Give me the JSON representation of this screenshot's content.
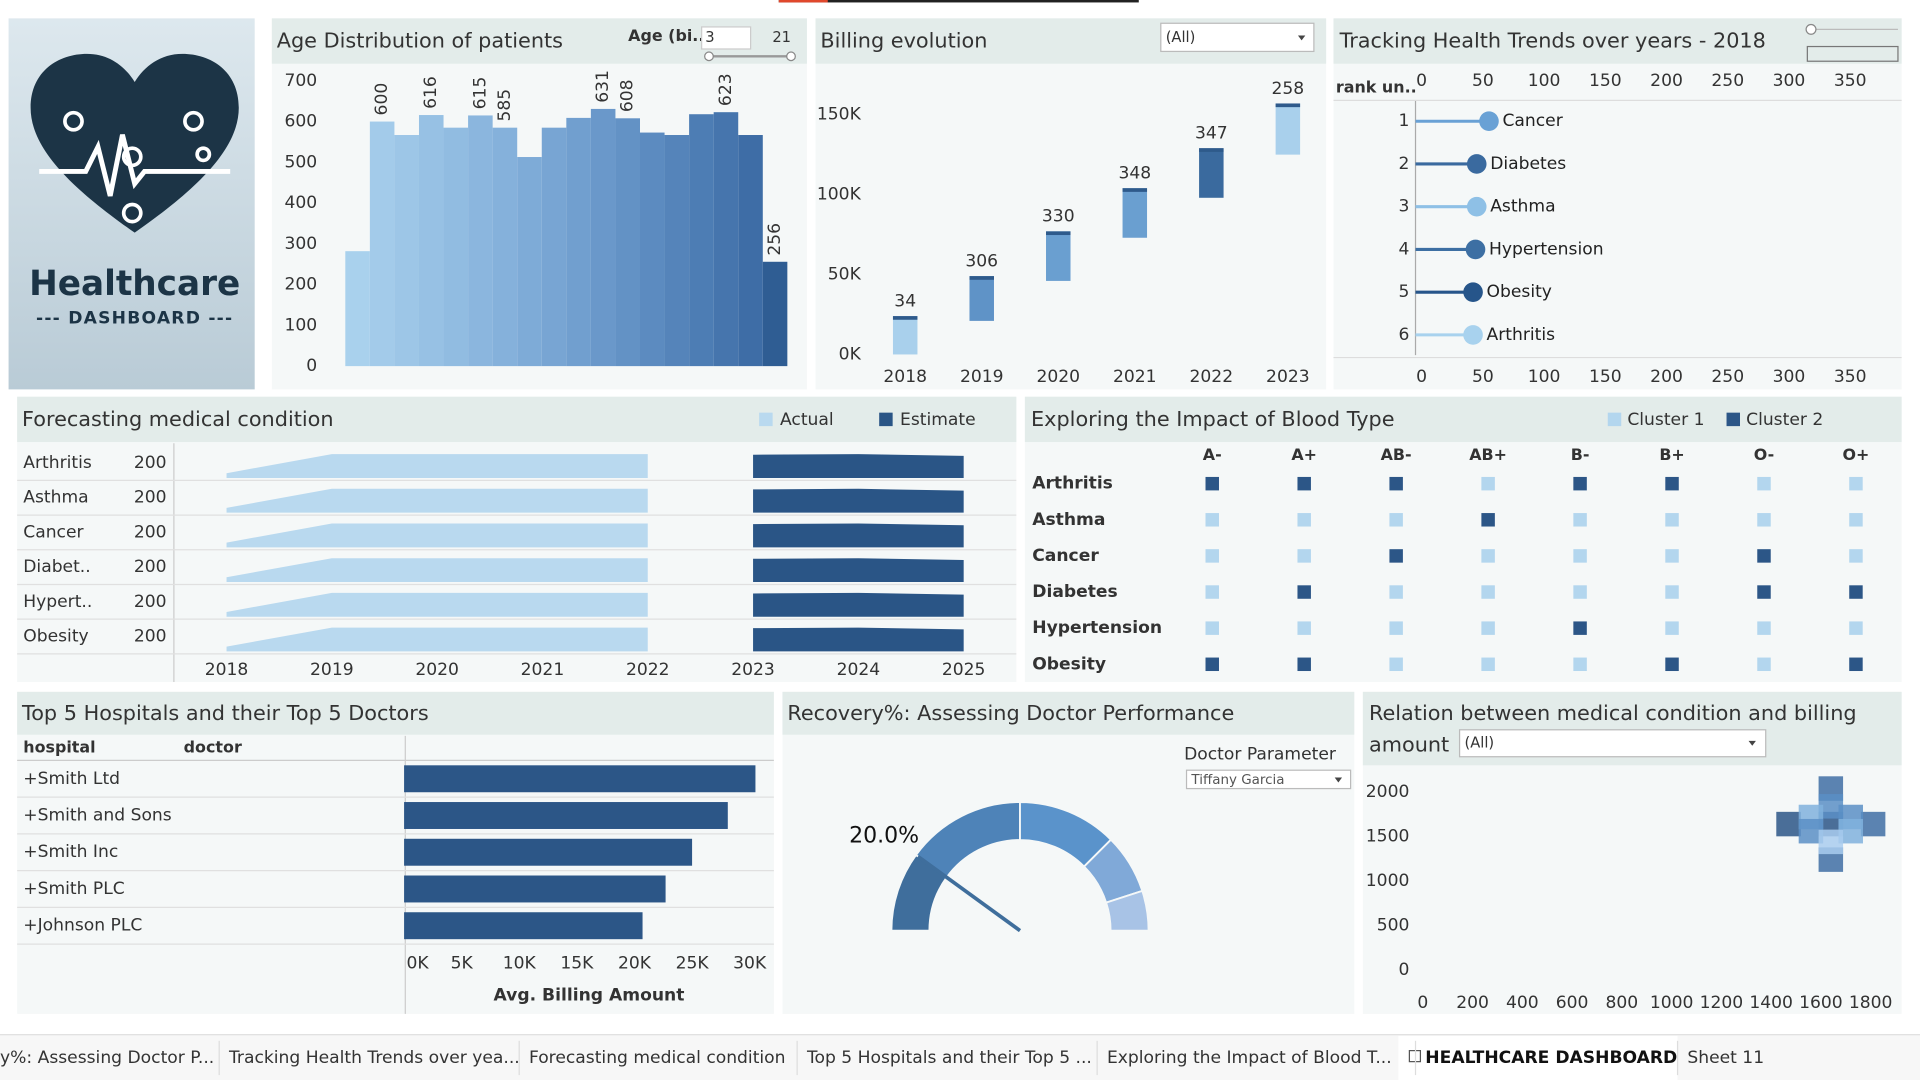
{
  "logo": {
    "title": "Healthcare",
    "subtitle": "--- DASHBOARD ---"
  },
  "chart_data": [
    {
      "type": "bar",
      "title": "Age Distribution of patients",
      "filter": {
        "label": "Age (bi..",
        "min": 3,
        "max": 21
      },
      "values": [
        282,
        600,
        567,
        616,
        585,
        615,
        585,
        513,
        585,
        609,
        631,
        608,
        573,
        567,
        618,
        623,
        567,
        256
      ],
      "show_labels": [
        false,
        true,
        false,
        true,
        false,
        true,
        true,
        false,
        false,
        false,
        true,
        true,
        false,
        false,
        false,
        true,
        false,
        true
      ],
      "colors": [
        "#a9d1ed",
        "#a3cbea",
        "#9dc6e7",
        "#97c1e4",
        "#91bce1",
        "#8bb6de",
        "#85b1db",
        "#7eabd7",
        "#78a5d3",
        "#719fcf",
        "#6a98ca",
        "#6392c5",
        "#5c8bc0",
        "#5584ba",
        "#4d7db4",
        "#4675ad",
        "#3e6da6",
        "#2f5d93"
      ],
      "ylim": [
        0,
        730
      ],
      "yticks": [
        0,
        100,
        200,
        300,
        400,
        500,
        600,
        700
      ]
    },
    {
      "type": "floating-bar",
      "title": "Billing evolution",
      "dropdown": "(All)",
      "categories": [
        "2018",
        "2019",
        "2020",
        "2021",
        "2022",
        "2023"
      ],
      "low": [
        0,
        21000,
        46000,
        73000,
        98000,
        125000
      ],
      "high": [
        24000,
        49000,
        77000,
        104000,
        129000,
        157000
      ],
      "counts": [
        34,
        306,
        330,
        348,
        347,
        258
      ],
      "colors": [
        "#a9d0ec",
        "#5f93c7",
        "#6a9fd0",
        "#6a9fd0",
        "#3a6a9e",
        "#a9d0ec"
      ],
      "cap_color": "#2e5a8b",
      "ylim": [
        -5000,
        175000
      ],
      "yticks": [
        {
          "value": 0,
          "label": "0K"
        },
        {
          "value": 50000,
          "label": "50K"
        },
        {
          "value": 100000,
          "label": "100K"
        },
        {
          "value": 150000,
          "label": "150K"
        }
      ]
    },
    {
      "type": "lollipop",
      "title": "Tracking Health Trends over years - 2018",
      "y_label": "rank un..",
      "ranks": [
        1,
        2,
        3,
        4,
        5,
        6
      ],
      "categories": [
        "Cancer",
        "Diabetes",
        "Asthma",
        "Hypertension",
        "Obesity",
        "Arthritis"
      ],
      "values": [
        55,
        45,
        45,
        44,
        42,
        42
      ],
      "colors": [
        "#69a1d5",
        "#3a6a9f",
        "#8ec0e6",
        "#3d6fa3",
        "#26558a",
        "#a8d2ee"
      ],
      "xlim": [
        0,
        388
      ],
      "xticks": [
        0,
        50,
        100,
        150,
        200,
        250,
        300,
        350
      ]
    },
    {
      "type": "area",
      "title": "Forecasting medical condition",
      "series": [
        {
          "name": "Actual",
          "color": "#b9d9ef"
        },
        {
          "name": "Estimate",
          "color": "#2a5586"
        }
      ],
      "x": [
        2018,
        2019,
        2020,
        2021,
        2022,
        2023,
        2024,
        2025
      ],
      "xlim": [
        2017.5,
        2025.5
      ],
      "row_ylim": [
        0,
        250
      ],
      "rows": [
        {
          "name": "Arthritis",
          "total": 200,
          "actual": [
            40,
            200,
            200,
            200,
            200,
            null,
            null,
            null
          ],
          "estimate": [
            null,
            null,
            null,
            null,
            null,
            195,
            200,
            185
          ]
        },
        {
          "name": "Asthma",
          "total": 200,
          "actual": [
            40,
            200,
            200,
            200,
            200,
            null,
            null,
            null
          ],
          "estimate": [
            null,
            null,
            null,
            null,
            null,
            195,
            200,
            185
          ]
        },
        {
          "name": "Cancer",
          "total": 200,
          "actual": [
            40,
            200,
            200,
            200,
            200,
            null,
            null,
            null
          ],
          "estimate": [
            null,
            null,
            null,
            null,
            null,
            195,
            200,
            185
          ]
        },
        {
          "name": "Diabet..",
          "total": 200,
          "actual": [
            40,
            200,
            200,
            200,
            200,
            null,
            null,
            null
          ],
          "estimate": [
            null,
            null,
            null,
            null,
            null,
            195,
            200,
            185
          ]
        },
        {
          "name": "Hypert..",
          "total": 200,
          "actual": [
            40,
            200,
            200,
            200,
            200,
            null,
            null,
            null
          ],
          "estimate": [
            null,
            null,
            null,
            null,
            null,
            195,
            200,
            185
          ]
        },
        {
          "name": "Obesity",
          "total": 200,
          "actual": [
            40,
            200,
            200,
            200,
            200,
            null,
            null,
            null
          ],
          "estimate": [
            null,
            null,
            null,
            null,
            null,
            195,
            200,
            185
          ]
        }
      ]
    },
    {
      "type": "matrix",
      "title": "Exploring the Impact of Blood Type",
      "series": [
        {
          "name": "Cluster 1",
          "color": "#b3d6ee"
        },
        {
          "name": "Cluster 2",
          "color": "#2c5687"
        }
      ],
      "columns": [
        "A-",
        "A+",
        "AB-",
        "AB+",
        "B-",
        "B+",
        "O-",
        "O+"
      ],
      "rows": [
        "Arthritis",
        "Asthma",
        "Cancer",
        "Diabetes",
        "Hypertension",
        "Obesity"
      ],
      "cells": [
        [
          2,
          2,
          2,
          1,
          2,
          2,
          1,
          1
        ],
        [
          1,
          1,
          1,
          2,
          1,
          1,
          1,
          1
        ],
        [
          1,
          1,
          2,
          1,
          1,
          1,
          2,
          1
        ],
        [
          1,
          2,
          1,
          1,
          1,
          1,
          2,
          2
        ],
        [
          1,
          1,
          1,
          1,
          2,
          1,
          1,
          1
        ],
        [
          2,
          2,
          1,
          1,
          1,
          2,
          1,
          2
        ]
      ]
    },
    {
      "type": "bar",
      "orientation": "horizontal",
      "title": "Top 5 Hospitals and their Top 5 Doctors",
      "headers": [
        "hospital",
        "doctor"
      ],
      "categories": [
        "+Smith Ltd",
        "+Smith and Sons",
        "+Smith Inc",
        "+Smith PLC",
        "+Johnson PLC"
      ],
      "values": [
        30500,
        28100,
        25000,
        22700,
        20700
      ],
      "color": "#2c5687",
      "xlim": [
        0,
        32100
      ],
      "xticks": [
        {
          "value": 0,
          "label": "0K"
        },
        {
          "value": 5000,
          "label": "5K"
        },
        {
          "value": 10000,
          "label": "10K"
        },
        {
          "value": 15000,
          "label": "15K"
        },
        {
          "value": 20000,
          "label": "20K"
        },
        {
          "value": 25000,
          "label": "25K"
        },
        {
          "value": 30000,
          "label": "30K"
        }
      ],
      "x_label": "Avg. Billing Amount"
    },
    {
      "type": "gauge",
      "title": "Recovery%: Assessing Doctor Performance",
      "parameter_label": "Doctor Parameter",
      "parameter_value": "Tiffany Garcia",
      "value": 20,
      "value_label": "20.0%",
      "range": [
        0,
        100
      ],
      "segments": [
        {
          "from": 0,
          "to": 20,
          "color": "#3f6e9c"
        },
        {
          "from": 20,
          "to": 50,
          "color": "#4e83b8"
        },
        {
          "from": 50,
          "to": 75,
          "color": "#5a93cb"
        },
        {
          "from": 75,
          "to": 90,
          "color": "#80a9d8"
        },
        {
          "from": 90,
          "to": 100,
          "color": "#a8c3e6"
        }
      ],
      "needle_color": "#3f6e9c"
    },
    {
      "type": "scatter",
      "title_lines": [
        "Relation between medical condition and billing",
        "amount"
      ],
      "dropdown": "(All)",
      "x": [
        1640,
        1640,
        1640,
        1640,
        1470,
        1810,
        1560,
        1720,
        1560,
        1720,
        1640
      ],
      "y": [
        1640,
        2040,
        1240,
        1840,
        1640,
        1640,
        1720,
        1720,
        1560,
        1560,
        1440
      ],
      "colors": [
        "#2c5687",
        "#3f6ea5",
        "#3f6ea5",
        "#5a8fc6",
        "#2c5687",
        "#3f6ea5",
        "#80b1dd",
        "#5a8fc6",
        "#5a8fc6",
        "#80b1dd",
        "#a9cdee"
      ],
      "xlim": [
        0,
        1900
      ],
      "ylim": [
        0,
        2150
      ],
      "xticks": [
        0,
        200,
        400,
        600,
        800,
        1000,
        1200,
        1400,
        1600,
        1800
      ],
      "yticks": [
        0,
        500,
        1000,
        1500,
        2000
      ]
    }
  ],
  "tabs": {
    "items": [
      "y%: Assessing Doctor P...",
      "Tracking Health Trends over yea...",
      "Forecasting medical condition",
      "Top 5 Hospitals and their Top 5 ...",
      "Exploring the Impact of Blood T...",
      "HEALTHCARE DASHBOARD",
      "Sheet 11"
    ],
    "active": 5
  }
}
